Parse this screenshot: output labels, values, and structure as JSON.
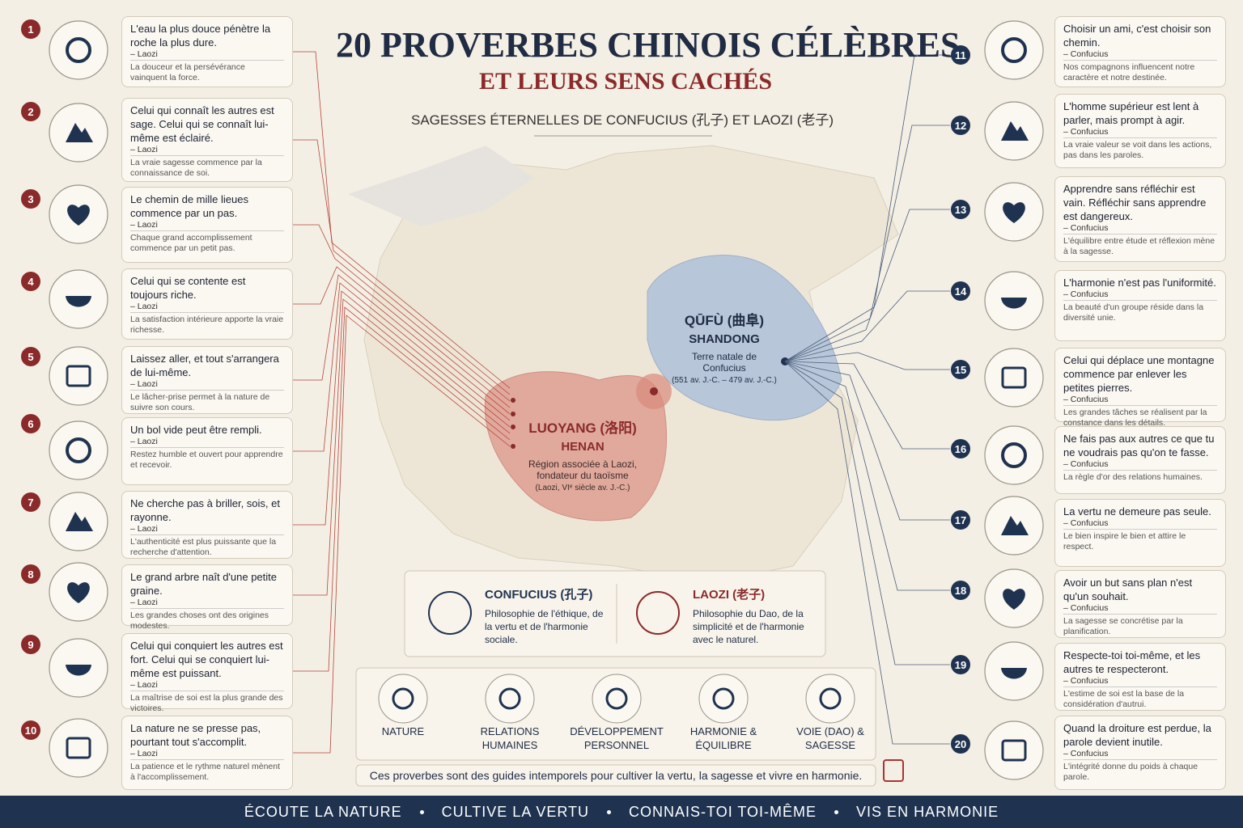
{
  "header": {
    "title_line1": "20 PROVERBES CHINOIS CÉLÈBRES",
    "title_line2": "ET LEURS SENS CACHÉS",
    "subtitle": "SAGESSES ÉTERNELLES DE CONFUCIUS (孔子) ET LAOZI (老子)"
  },
  "proverbs": [
    {
      "number": 1,
      "text": "L'eau la plus douce pénètre la roche la plus dure.",
      "author": "– Laozi",
      "meaning": "La douceur et la persévérance vainquent la force."
    },
    {
      "number": 2,
      "text": "Celui qui connaît les autres est sage. Celui qui se connaît lui-même est éclairé.",
      "author": "– Laozi",
      "meaning": "La vraie sagesse commence par la connaissance de soi."
    },
    {
      "number": 3,
      "text": "Le chemin de mille lieues commence par un pas.",
      "author": "– Laozi",
      "meaning": "Chaque grand accomplissement commence par un petit pas."
    },
    {
      "number": 4,
      "text": "Celui qui se contente est toujours riche.",
      "author": "– Laozi",
      "meaning": "La satisfaction intérieure apporte la vraie richesse."
    },
    {
      "number": 5,
      "text": "Laissez aller, et tout s'arrangera de lui-même.",
      "author": "– Laozi",
      "meaning": "Le lâcher-prise permet à la nature de suivre son cours."
    },
    {
      "number": 6,
      "text": "Un bol vide peut être rempli.",
      "author": "– Laozi",
      "meaning": "Restez humble et ouvert pour apprendre et recevoir."
    },
    {
      "number": 7,
      "text": "Ne cherche pas à briller, sois, et rayonne.",
      "author": "– Laozi",
      "meaning": "L'authenticité est plus puissante que la recherche d'attention."
    },
    {
      "number": 8,
      "text": "Le grand arbre naît d'une petite graine.",
      "author": "– Laozi",
      "meaning": "Les grandes choses ont des origines modestes."
    },
    {
      "number": 9,
      "text": "Celui qui conquiert les autres est fort. Celui qui se conquiert lui-même est puissant.",
      "author": "– Laozi",
      "meaning": "La maîtrise de soi est la plus grande des victoires."
    },
    {
      "number": 10,
      "text": "La nature ne se presse pas, pourtant tout s'accomplit.",
      "author": "– Laozi",
      "meaning": "La patience et le rythme naturel mènent à l'accomplissement."
    },
    {
      "number": 11,
      "text": "Choisir un ami, c'est choisir son chemin.",
      "author": "– Confucius",
      "meaning": "Nos compagnons influencent notre caractère et notre destinée."
    },
    {
      "number": 12,
      "text": "L'homme supérieur est lent à parler, mais prompt à agir.",
      "author": "– Confucius",
      "meaning": "La vraie valeur se voit dans les actions, pas dans les paroles."
    },
    {
      "number": 13,
      "text": "Apprendre sans réfléchir est vain. Réfléchir sans apprendre est dangereux.",
      "author": "– Confucius",
      "meaning": "L'équilibre entre étude et réflexion mène à la sagesse."
    },
    {
      "number": 14,
      "text": "L'harmonie n'est pas l'uniformité.",
      "author": "– Confucius",
      "meaning": "La beauté d'un groupe réside dans la diversité unie."
    },
    {
      "number": 15,
      "text": "Celui qui déplace une montagne commence par enlever les petites pierres.",
      "author": "– Confucius",
      "meaning": "Les grandes tâches se réalisent par la constance dans les détails."
    },
    {
      "number": 16,
      "text": "Ne fais pas aux autres ce que tu ne voudrais pas qu'on te fasse.",
      "author": "– Confucius",
      "meaning": "La règle d'or des relations humaines."
    },
    {
      "number": 17,
      "text": "La vertu ne demeure pas seule.",
      "author": "– Confucius",
      "meaning": "Le bien inspire le bien et attire le respect."
    },
    {
      "number": 18,
      "text": "Avoir un but sans plan n'est qu'un souhait.",
      "author": "– Confucius",
      "meaning": "La sagesse se concrétise par la planification."
    },
    {
      "number": 19,
      "text": "Respecte-toi toi-même, et les autres te respecteront.",
      "author": "– Confucius",
      "meaning": "L'estime de soi est la base de la considération d'autrui."
    },
    {
      "number": 20,
      "text": "Quand la droiture est perdue, la parole devient inutile.",
      "author": "– Confucius",
      "meaning": "L'intégrité donne du poids à chaque parole."
    }
  ],
  "map": {
    "qufu": {
      "name": "QŪFÙ (曲阜)",
      "province": "SHANDONG",
      "description": "Terre natale de Confucius",
      "dates": "(551 av. J.-C. – 479 av. J.-C.)"
    },
    "luoyang": {
      "name": "LUOYANG (洛阳)",
      "province": "HENAN",
      "description": "Région associée à Laozi, fondateur du taoïsme",
      "dates": "(Laozi, VIᵉ siècle av. J.-C.)"
    }
  },
  "philosophers": [
    {
      "name": "CONFUCIUS (孔子)",
      "description": "Philosophie de l'éthique, de la vertu et de l'harmonie sociale."
    },
    {
      "name": "LAOZI (老子)",
      "description": "Philosophie du Dao, de la simplicité et de l'harmonie avec le naturel."
    }
  ],
  "themes": [
    "NATURE",
    "RELATIONS HUMAINES",
    "DÉVELOPPEMENT PERSONNEL",
    "HARMONIE & ÉQUILIBRE",
    "VOIE (DAO) & SAGESSE"
  ],
  "note": "Ces proverbes sont des guides intemporels pour cultiver la vertu, la sagesse et vivre en harmonie.",
  "footer": [
    "ÉCOUTE LA NATURE",
    "CULTIVE LA VERTU",
    "CONNAIS-TOI TOI-MÊME",
    "VIS EN HARMONIE"
  ]
}
